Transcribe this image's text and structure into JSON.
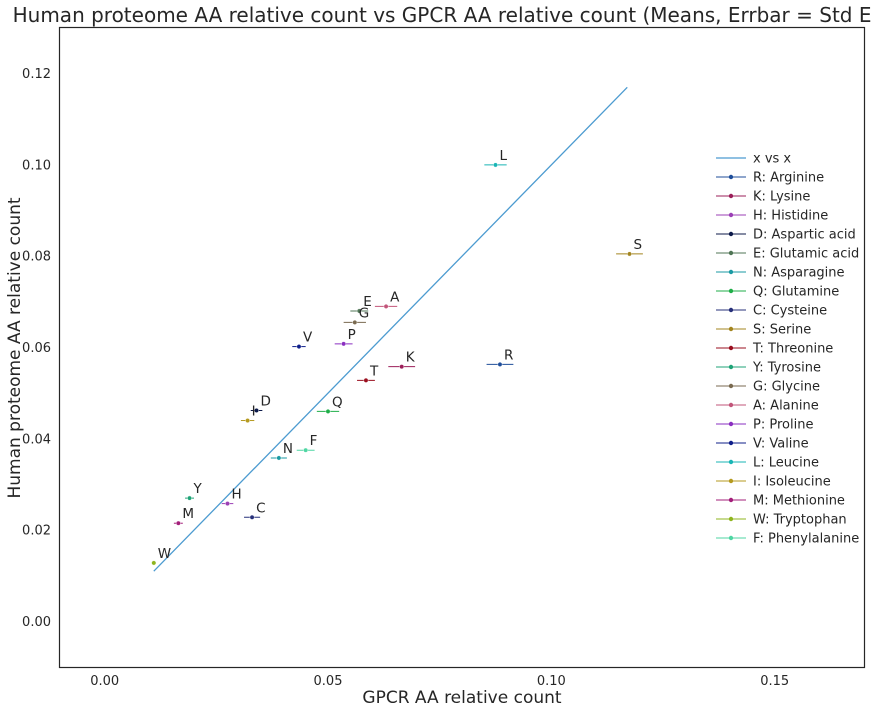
{
  "chart_data": {
    "type": "scatter",
    "title": "Human proteome AA relative count vs GPCR AA relative count (Means, Errbar = Std Err)",
    "xlabel": "GPCR AA relative count",
    "ylabel": "Human proteome AA relative count",
    "xlim": [
      -0.01,
      0.17
    ],
    "ylim": [
      -0.01,
      0.13
    ],
    "xticks": [
      "0.00",
      "0.05",
      "0.10",
      "0.15"
    ],
    "yticks": [
      "0.00",
      "0.02",
      "0.04",
      "0.06",
      "0.08",
      "0.10",
      "0.12"
    ],
    "grid": false,
    "legend_position": "right",
    "reference_line": {
      "name": "x vs x",
      "color": "#4c9bd0",
      "x": [
        0.011,
        0.117
      ],
      "y": [
        0.011,
        0.117
      ]
    },
    "series": [
      {
        "name": "R: Arginine",
        "label": "R",
        "x": 0.0885,
        "y": 0.0563,
        "xerr": 0.003,
        "color": "#1f4e9a"
      },
      {
        "name": "K: Lysine",
        "label": "K",
        "x": 0.0665,
        "y": 0.0558,
        "xerr": 0.003,
        "color": "#9b1f5a"
      },
      {
        "name": "H: Histidine",
        "label": "H",
        "x": 0.0275,
        "y": 0.0258,
        "xerr": 0.0013,
        "color": "#9b3fb5"
      },
      {
        "name": "D: Aspartic acid",
        "label": "D",
        "x": 0.034,
        "y": 0.0462,
        "xerr": 0.0013,
        "color": "#0d1a4a"
      },
      {
        "name": "E: Glutamic acid",
        "label": "E",
        "x": 0.057,
        "y": 0.068,
        "xerr": 0.002,
        "color": "#4f7555"
      },
      {
        "name": "N: Asparagine",
        "label": "N",
        "x": 0.039,
        "y": 0.0358,
        "xerr": 0.0018,
        "color": "#1a9aa3"
      },
      {
        "name": "Q: Glutamine",
        "label": "Q",
        "x": 0.05,
        "y": 0.046,
        "xerr": 0.0025,
        "color": "#1fae48"
      },
      {
        "name": "C: Cysteine",
        "label": "C",
        "x": 0.033,
        "y": 0.0228,
        "xerr": 0.0018,
        "color": "#27307a"
      },
      {
        "name": "S: Serine",
        "label": "S",
        "x": 0.1175,
        "y": 0.0805,
        "xerr": 0.003,
        "color": "#a3851f"
      },
      {
        "name": "T: Threonine",
        "label": "T",
        "x": 0.0585,
        "y": 0.0528,
        "xerr": 0.002,
        "color": "#9a0f1f"
      },
      {
        "name": "Y: Tyrosine",
        "label": "Y",
        "x": 0.019,
        "y": 0.027,
        "xerr": 0.001,
        "color": "#1fa377"
      },
      {
        "name": "G: Glycine",
        "label": "G",
        "x": 0.056,
        "y": 0.0655,
        "xerr": 0.0025,
        "color": "#7a6a50"
      },
      {
        "name": "A: Alanine",
        "label": "A",
        "x": 0.063,
        "y": 0.069,
        "xerr": 0.0025,
        "color": "#c2557a"
      },
      {
        "name": "P: Proline",
        "label": "P",
        "x": 0.0535,
        "y": 0.0608,
        "xerr": 0.002,
        "color": "#8a2fc0"
      },
      {
        "name": "V: Valine",
        "label": "V",
        "x": 0.0435,
        "y": 0.0602,
        "xerr": 0.0015,
        "color": "#0f1f8a"
      },
      {
        "name": "L: Leucine",
        "label": "L",
        "x": 0.0875,
        "y": 0.1,
        "xerr": 0.0025,
        "color": "#19b5b5"
      },
      {
        "name": "I: Isoleucine",
        "label": "I",
        "x": 0.032,
        "y": 0.044,
        "xerr": 0.0015,
        "color": "#b59a1f"
      },
      {
        "name": "M: Methionine",
        "label": "M",
        "x": 0.0165,
        "y": 0.0215,
        "xerr": 0.001,
        "color": "#a31f7a"
      },
      {
        "name": "W: Tryptophan",
        "label": "W",
        "x": 0.011,
        "y": 0.0128,
        "xerr": 0.0005,
        "color": "#8fb51f"
      },
      {
        "name": "F: Phenylalanine",
        "label": "F",
        "x": 0.045,
        "y": 0.0375,
        "xerr": 0.002,
        "color": "#4fd6a3"
      }
    ]
  }
}
